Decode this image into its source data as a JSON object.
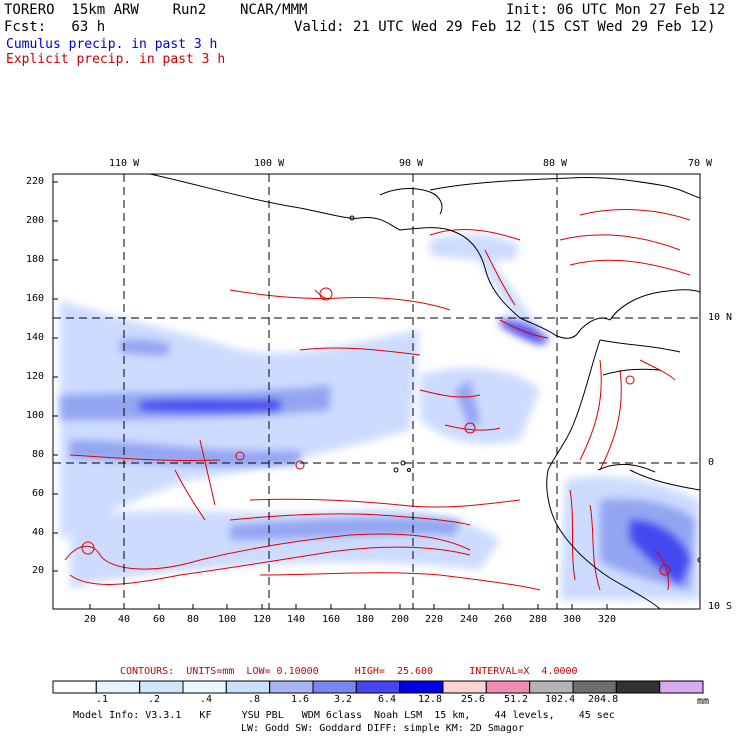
{
  "header": {
    "model_line": "TORERO  15km ARW    Run2    NCAR/MMM",
    "init_line": "Init: 06 UTC Mon 27 Feb 12",
    "fcst_line": "Fcst:   63 h",
    "valid_line": "Valid: 21 UTC Wed 29 Feb 12 (15 CST Wed 29 Feb 12)",
    "legend_cumulus": "Cumulus precip. in past 3 h",
    "legend_explicit": "Explicit precip. in past 3 h"
  },
  "colors": {
    "cumulus_text": "#0000cc",
    "explicit_text": "#cc0000",
    "contour_red": "#e00000",
    "shade_light": "#c8d8ff",
    "shade_mid": "#8a9cf0",
    "shade_dark": "#3030f0"
  },
  "map": {
    "lon_labels": [
      "110 W",
      "100 W",
      "90 W",
      "80 W",
      "70 W"
    ],
    "lat_labels": [
      "10 N",
      "0",
      "10 S"
    ],
    "y_ticks": [
      "220",
      "200",
      "180",
      "160",
      "140",
      "120",
      "100",
      "80",
      "60",
      "40",
      "20"
    ],
    "x_ticks": [
      "20",
      "40",
      "60",
      "80",
      "100",
      "120",
      "140",
      "160",
      "180",
      "200",
      "220",
      "240",
      "260",
      "280",
      "300",
      "320"
    ]
  },
  "contours_caption": "CONTOURS:  UNITS=mm  LOW= 0.10000      HIGH=  25.600      INTERVAL=X  4.0000",
  "colorbar": {
    "labels": [
      ".1",
      ".2",
      ".4",
      ".8",
      "1.6",
      "3.2",
      "6.4",
      "12.8",
      "25.6",
      "51.2",
      "102.4",
      "204.8"
    ],
    "unit": "mm",
    "colors": [
      "#ffffff",
      "#e8f3ff",
      "#d2e6fb",
      "#e8f8fb",
      "#c9e0f8",
      "#a8b4f4",
      "#7c84f0",
      "#4646ec",
      "#0000e4",
      "#fad2d2",
      "#f08cb4",
      "#b4b4b4",
      "#6e6e6e",
      "#323232",
      "#d8aaf0"
    ]
  },
  "footer": {
    "line1": "Model Info: V3.3.1   KF     YSU PBL   WDM 6class  Noah LSM  15 km,    44 levels,    45 sec",
    "line2": "LW: Godd SW: Goddard DIFF: simple KM: 2D Smagor"
  }
}
